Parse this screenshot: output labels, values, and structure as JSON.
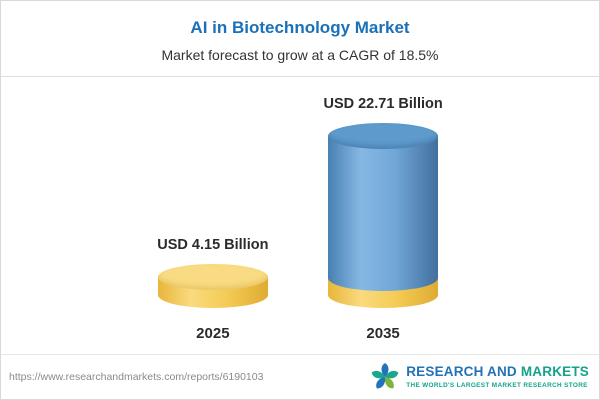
{
  "header": {
    "title": "AI in Biotechnology Market",
    "subtitle": "Market forecast to grow at a CAGR of 18.5%"
  },
  "chart_data": {
    "type": "bar",
    "categories": [
      "2025",
      "2035"
    ],
    "values": [
      4.15,
      22.71
    ],
    "unit": "USD Billion",
    "data_labels": [
      "USD 4.15 Billion",
      "USD 22.71 Billion"
    ],
    "title": "AI in Biotechnology Market",
    "subtitle": "Market forecast to grow at a CAGR of 18.5%",
    "cagr": "18.5%",
    "xlabel": "",
    "ylabel": "",
    "ylim": [
      0,
      25
    ],
    "grid": false,
    "legend": "none",
    "style": "3d-cylinder",
    "colors": {
      "bar_2025": "#F4CC55",
      "bar_2035_top_segment": "#6FA6D6",
      "bar_2035_base_segment": "#F4CC55",
      "title_color": "#1A71B8"
    }
  },
  "footer": {
    "url": "https://www.researchandmarkets.com/reports/6190103",
    "logo_part1": "RESEARCH AND",
    "logo_part2": "MARKETS",
    "tagline": "THE WORLD'S LARGEST MARKET RESEARCH STORE"
  }
}
